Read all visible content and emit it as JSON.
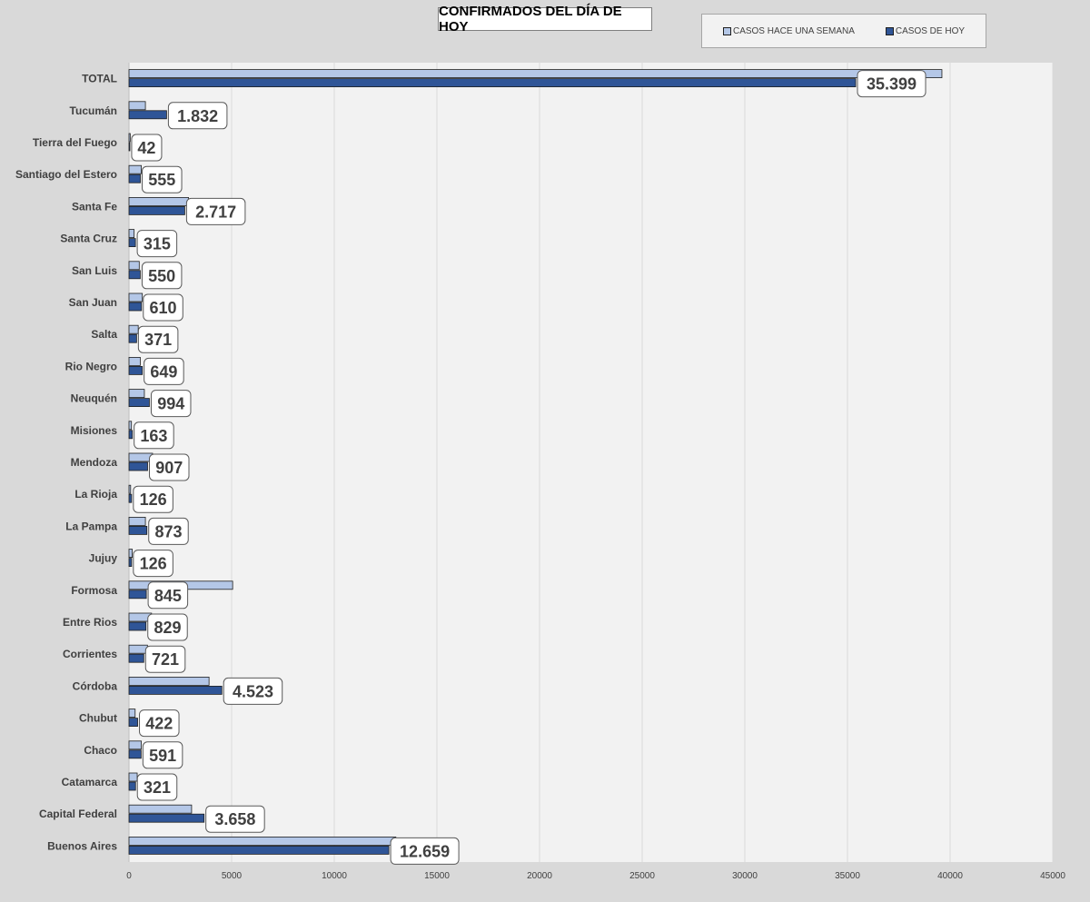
{
  "chart_data": {
    "type": "bar",
    "orientation": "horizontal",
    "title": "CONFIRMADOS DEL DÍA DE HOY",
    "categories": [
      "TOTAL",
      "Tucumán",
      "Tierra del Fuego",
      "Santiago del Estero",
      "Santa Fe",
      "Santa Cruz",
      "San Luis",
      "San Juan",
      "Salta",
      "Rio Negro",
      "Neuquén",
      "Misiones",
      "Mendoza",
      "La Rioja",
      "La Pampa",
      "Jujuy",
      "Formosa",
      "Entre Rios",
      "Corrientes",
      "Córdoba",
      "Chubut",
      "Chaco",
      "Catamarca",
      "Capital Federal",
      "Buenos Aires"
    ],
    "series": [
      {
        "name": "CASOS HACE UNA SEMANA",
        "color": "#b4c7e7",
        "values": [
          39600,
          800,
          60,
          600,
          2900,
          250,
          500,
          650,
          450,
          550,
          750,
          120,
          1150,
          80,
          800,
          160,
          5050,
          1100,
          900,
          3900,
          300,
          600,
          400,
          3050,
          13000
        ]
      },
      {
        "name": "CASOS DE HOY",
        "color": "#2f5597",
        "values": [
          35399,
          1832,
          42,
          555,
          2717,
          315,
          550,
          610,
          371,
          649,
          994,
          163,
          907,
          126,
          873,
          126,
          845,
          829,
          721,
          4523,
          422,
          591,
          321,
          3658,
          12659
        ]
      }
    ],
    "data_labels": [
      "35.399",
      "1.832",
      "42",
      "555",
      "2.717",
      "315",
      "550",
      "610",
      "371",
      "649",
      "994",
      "163",
      "907",
      "126",
      "873",
      "126",
      "845",
      "829",
      "721",
      "4.523",
      "422",
      "591",
      "321",
      "3.658",
      "12.659"
    ],
    "x_ticks": [
      "0",
      "5000",
      "10000",
      "15000",
      "20000",
      "25000",
      "30000",
      "35000",
      "40000",
      "45000"
    ],
    "xlim": [
      0,
      45000
    ],
    "xlabel": "",
    "ylabel": "",
    "grid": "vertical",
    "legend_position": "top-right"
  }
}
